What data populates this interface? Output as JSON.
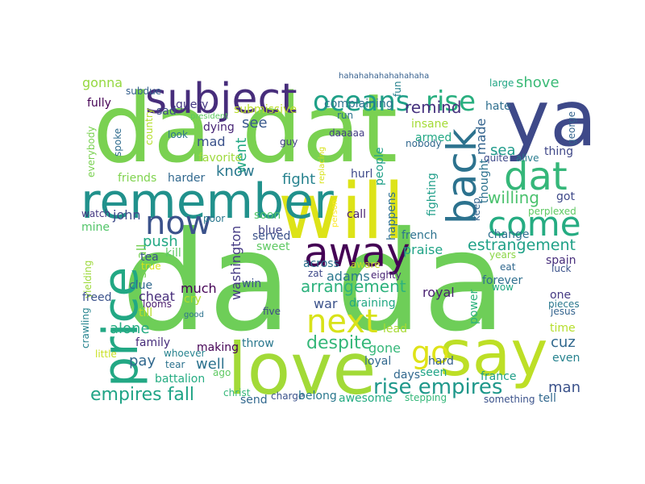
{
  "words": [
    {
      "text": "da da",
      "color": "#6ece58"
    },
    {
      "text": "da dat",
      "color": "#7ad151"
    },
    {
      "text": "ya",
      "color": "#3e4989"
    },
    {
      "text": "will",
      "color": "#dde318"
    },
    {
      "text": "love",
      "color": "#a2da37"
    },
    {
      "text": "say",
      "color": "#bddf26"
    },
    {
      "text": "price",
      "color": "#22a884"
    },
    {
      "text": "remember",
      "color": "#21918c"
    },
    {
      "text": "subject",
      "color": "#472d7b"
    },
    {
      "text": "away",
      "color": "#440154"
    },
    {
      "text": "back",
      "color": "#2c728e"
    },
    {
      "text": "dat",
      "color": "#35b779"
    },
    {
      "text": "come",
      "color": "#25ac82"
    },
    {
      "text": "now",
      "color": "#3b528b"
    },
    {
      "text": "oceans",
      "color": "#1fa088"
    },
    {
      "text": "rise",
      "color": "#29af7f"
    },
    {
      "text": "next",
      "color": "#d8e219"
    },
    {
      "text": "go",
      "color": "#dfe318"
    },
    {
      "text": "rise empires",
      "color": "#1f988b"
    },
    {
      "text": "empires fall",
      "color": "#20a486"
    },
    {
      "text": "despite",
      "color": "#35b779"
    },
    {
      "text": "shove",
      "color": "#3aba76"
    },
    {
      "text": "remind",
      "color": "#46327e"
    },
    {
      "text": "estrangement",
      "color": "#1fa187"
    },
    {
      "text": "arrangement",
      "color": "#2db27d"
    },
    {
      "text": "willing",
      "color": "#4ac16d"
    },
    {
      "text": "went",
      "color": "#22a884"
    },
    {
      "text": "sea",
      "color": "#1e9b8a"
    },
    {
      "text": "made",
      "color": "#33638d"
    },
    {
      "text": "fight",
      "color": "#26828e"
    },
    {
      "text": "know",
      "color": "#2a788e"
    },
    {
      "text": "see",
      "color": "#38588c"
    },
    {
      "text": "mad",
      "color": "#3b528b"
    },
    {
      "text": "dying",
      "color": "#482576"
    },
    {
      "text": "query",
      "color": "#453882"
    },
    {
      "text": "sad",
      "color": "#3e4989"
    },
    {
      "text": "submissive",
      "color": "#bade28"
    },
    {
      "text": "complaining",
      "color": "#2c728e"
    },
    {
      "text": "insane",
      "color": "#a5db36"
    },
    {
      "text": "armed",
      "color": "#22a884"
    },
    {
      "text": "nobody",
      "color": "#31688e"
    },
    {
      "text": "hate",
      "color": "#2e6f8e"
    },
    {
      "text": "large",
      "color": "#21a685"
    },
    {
      "text": "hahahahahahahahaha",
      "color": "#355f8d"
    },
    {
      "text": "fun",
      "color": "#26828e"
    },
    {
      "text": "run",
      "color": "#2c728e"
    },
    {
      "text": "daaaaa",
      "color": "#433e85"
    },
    {
      "text": "guy",
      "color": "#424186"
    },
    {
      "text": "look",
      "color": "#2c728e"
    },
    {
      "text": "president",
      "color": "#5ec962"
    },
    {
      "text": "country",
      "color": "#b5de2b"
    },
    {
      "text": "spoke",
      "color": "#2f6c8e"
    },
    {
      "text": "everybody",
      "color": "#7ad151"
    },
    {
      "text": "crawling",
      "color": "#25838e"
    },
    {
      "text": "fully",
      "color": "#440154"
    },
    {
      "text": "subdue",
      "color": "#355f8d"
    },
    {
      "text": "gonna",
      "color": "#95d840"
    },
    {
      "text": "favorite",
      "color": "#9dd93b"
    },
    {
      "text": "friends",
      "color": "#7fd34e"
    },
    {
      "text": "harder",
      "color": "#31688e"
    },
    {
      "text": "thing",
      "color": "#3f4788"
    },
    {
      "text": "quite",
      "color": "#3e4989"
    },
    {
      "text": "alive",
      "color": "#287c8e"
    },
    {
      "text": "george",
      "color": "#33638d"
    },
    {
      "text": "people",
      "color": "#1fa088"
    },
    {
      "text": "hurl",
      "color": "#3e4989"
    },
    {
      "text": "fighting",
      "color": "#1f9e89"
    },
    {
      "text": "thought",
      "color": "#2c728e"
    },
    {
      "text": "replacing",
      "color": "#d8e219"
    },
    {
      "text": "person",
      "color": "#fde725"
    },
    {
      "text": "call",
      "color": "#481f70"
    },
    {
      "text": "happens",
      "color": "#2e6f8e"
    },
    {
      "text": "keep",
      "color": "#33638d"
    },
    {
      "text": "got",
      "color": "#3e4989"
    },
    {
      "text": "perplexed",
      "color": "#5ec962"
    },
    {
      "text": "john",
      "color": "#3e4989"
    },
    {
      "text": "watch",
      "color": "#453882"
    },
    {
      "text": "mine",
      "color": "#52c569"
    },
    {
      "text": "poor",
      "color": "#2a788e"
    },
    {
      "text": "soon",
      "color": "#52c569"
    },
    {
      "text": "blue",
      "color": "#414487"
    },
    {
      "text": "sweet",
      "color": "#5ec962"
    },
    {
      "text": "served",
      "color": "#3b528b"
    },
    {
      "text": "french",
      "color": "#2c728e"
    },
    {
      "text": "praise",
      "color": "#20a486"
    },
    {
      "text": "washington",
      "color": "#443983"
    },
    {
      "text": "push",
      "color": "#22a884"
    },
    {
      "text": "small",
      "color": "#75d054"
    },
    {
      "text": "tea",
      "color": "#3b528b"
    },
    {
      "text": "kill",
      "color": "#5ec962"
    },
    {
      "text": "true",
      "color": "#d8e219"
    },
    {
      "text": "yielding",
      "color": "#9dd93b"
    },
    {
      "text": "clue",
      "color": "#31688e"
    },
    {
      "text": "across",
      "color": "#2c728e"
    },
    {
      "text": "aware",
      "color": "#c2df23"
    },
    {
      "text": "zat",
      "color": "#3e4989"
    },
    {
      "text": "eighty",
      "color": "#482475"
    },
    {
      "text": "adams",
      "color": "#2a788e"
    },
    {
      "text": "spain",
      "color": "#472d7b"
    },
    {
      "text": "years",
      "color": "#8bd646"
    },
    {
      "text": "eat",
      "color": "#31688e"
    },
    {
      "text": "luck",
      "color": "#3b528b"
    },
    {
      "text": "change",
      "color": "#2e6f8e"
    },
    {
      "text": "forever",
      "color": "#2e6f8e"
    },
    {
      "text": "wow",
      "color": "#22a884"
    },
    {
      "text": "one",
      "color": "#443983"
    },
    {
      "text": "pieces",
      "color": "#2a788e"
    },
    {
      "text": "jesus",
      "color": "#33638d"
    },
    {
      "text": "time",
      "color": "#b5de2b"
    },
    {
      "text": "win",
      "color": "#3b528b"
    },
    {
      "text": "much",
      "color": "#440154"
    },
    {
      "text": "freed",
      "color": "#3b528b"
    },
    {
      "text": "cheat",
      "color": "#472d7b"
    },
    {
      "text": "cry",
      "color": "#b5de2b"
    },
    {
      "text": "till",
      "color": "#bade28"
    },
    {
      "text": "looms",
      "color": "#481b6d"
    },
    {
      "text": "good",
      "color": "#2c728e"
    },
    {
      "text": "alone",
      "color": "#25ac82"
    },
    {
      "text": "five",
      "color": "#3e4989"
    },
    {
      "text": "war",
      "color": "#3b528b"
    },
    {
      "text": "draining",
      "color": "#22a884"
    },
    {
      "text": "royal",
      "color": "#481f70"
    },
    {
      "text": "power",
      "color": "#2db27d"
    },
    {
      "text": "family",
      "color": "#472d7b"
    },
    {
      "text": "making",
      "color": "#440154"
    },
    {
      "text": "pay",
      "color": "#31688e"
    },
    {
      "text": "whoever",
      "color": "#26828e"
    },
    {
      "text": "well",
      "color": "#2c728e"
    },
    {
      "text": "little",
      "color": "#c8e020"
    },
    {
      "text": "tear",
      "color": "#2c728e"
    },
    {
      "text": "battalion",
      "color": "#25ac82"
    },
    {
      "text": "ago",
      "color": "#5ec962"
    },
    {
      "text": "throw",
      "color": "#2a788e"
    },
    {
      "text": "lead",
      "color": "#a8db34"
    },
    {
      "text": "gone",
      "color": "#35b779"
    },
    {
      "text": "loyal",
      "color": "#31688e"
    },
    {
      "text": "hard",
      "color": "#355f8d"
    },
    {
      "text": "cuz",
      "color": "#31688e"
    },
    {
      "text": "even",
      "color": "#26828e"
    },
    {
      "text": "france",
      "color": "#1f9e89"
    },
    {
      "text": "days",
      "color": "#31688e"
    },
    {
      "text": "seen",
      "color": "#20a486"
    },
    {
      "text": "man",
      "color": "#3b528b"
    },
    {
      "text": "tell",
      "color": "#31688e"
    },
    {
      "text": "christ",
      "color": "#35b779"
    },
    {
      "text": "send",
      "color": "#31688e"
    },
    {
      "text": "charge",
      "color": "#3b528b"
    },
    {
      "text": "belong",
      "color": "#2a788e"
    },
    {
      "text": "awesome",
      "color": "#25ac82"
    },
    {
      "text": "stepping",
      "color": "#35b779"
    },
    {
      "text": "something",
      "color": "#3b528b"
    }
  ]
}
